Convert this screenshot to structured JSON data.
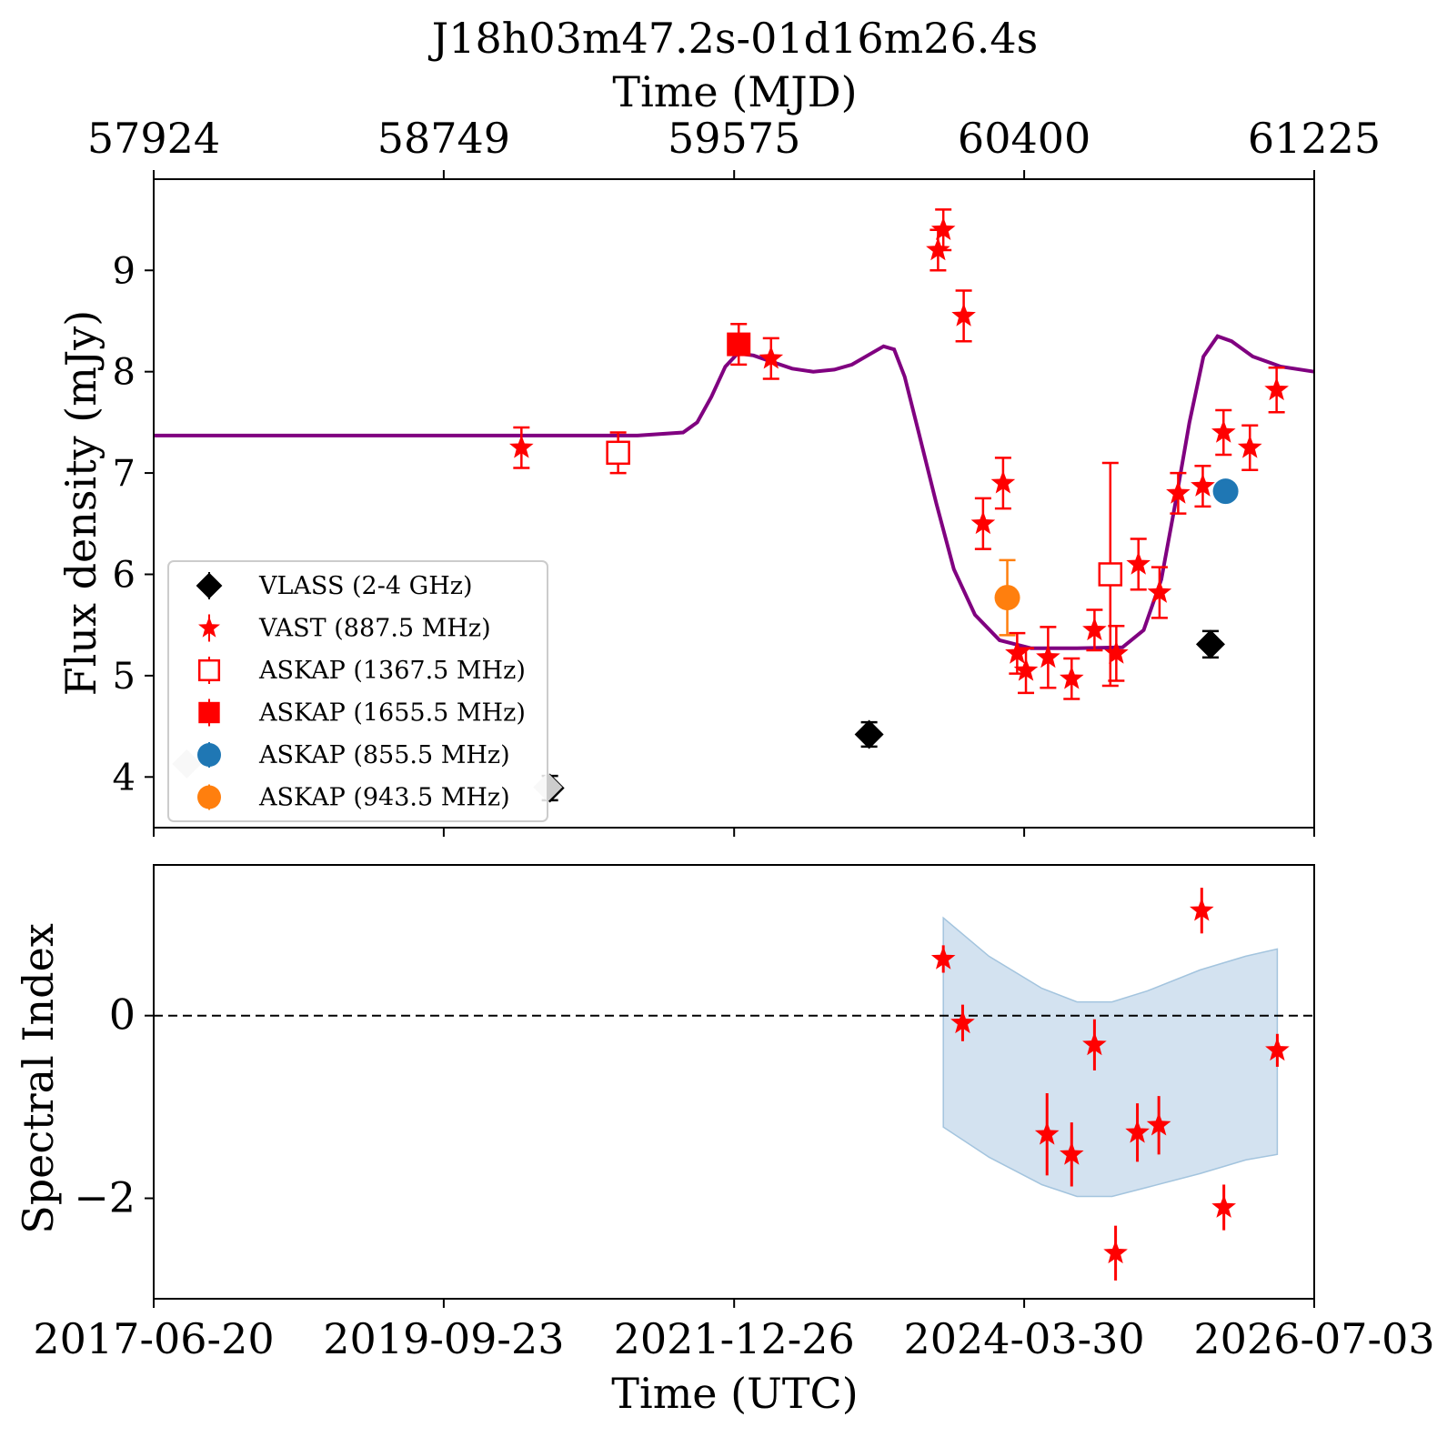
{
  "title": "J18h03m47.2s-01d16m26.4s",
  "top_axis": {
    "label": "Time (MJD)",
    "ticks": [
      57924,
      58749,
      59575,
      60400,
      61225
    ]
  },
  "bottom_axis": {
    "label": "Time (UTC)",
    "ticks": [
      "2017-06-20",
      "2019-09-23",
      "2021-12-26",
      "2024-03-30",
      "2026-07-03"
    ]
  },
  "colors": {
    "vlass": "#000000",
    "vast": "#ff0000",
    "askap_855": "#1f77b4",
    "askap_943": "#ff7f0e",
    "model": "#800080",
    "band": "#aecbe3",
    "grey_point": "#cccccc"
  },
  "chart_data": [
    {
      "type": "scatter",
      "panel": "flux",
      "ylabel": "Flux density (mJy)",
      "xlim": [
        57924,
        61225
      ],
      "ylim": [
        3.5,
        9.9
      ],
      "yticks": [
        4,
        5,
        6,
        7,
        8,
        9
      ],
      "grid": false,
      "legend_position": "lower-left",
      "legend": [
        {
          "label": "VLASS (2-4 GHz)",
          "marker": "diamond",
          "color": "#000000"
        },
        {
          "label": "VAST (887.5 MHz)",
          "marker": "star",
          "color": "#ff0000"
        },
        {
          "label": "ASKAP (1367.5 MHz)",
          "marker": "open-square",
          "color": "#ff0000"
        },
        {
          "label": "ASKAP (1655.5 MHz)",
          "marker": "filled-square",
          "color": "#ff0000"
        },
        {
          "label": "ASKAP (855.5 MHz)",
          "marker": "circle",
          "color": "#1f77b4"
        },
        {
          "label": "ASKAP (943.5 MHz)",
          "marker": "circle",
          "color": "#ff7f0e"
        }
      ],
      "series": [
        {
          "name": "VLASS (2-4 GHz)",
          "marker": "diamond",
          "points": [
            [
              59051,
              3.89,
              0.12
            ],
            [
              59959,
              4.42,
              0.12
            ],
            [
              60930,
              5.31,
              0.13
            ]
          ]
        },
        {
          "name": "VAST (887.5 MHz)",
          "marker": "star",
          "points": [
            [
              58970,
              7.25,
              0.2
            ],
            [
              59680,
              8.13,
              0.2
            ],
            [
              60155,
              9.2,
              0.2
            ],
            [
              60170,
              9.4,
              0.2
            ],
            [
              60228,
              8.55,
              0.25
            ],
            [
              60283,
              6.5,
              0.25
            ],
            [
              60340,
              6.9,
              0.25
            ],
            [
              60380,
              5.22,
              0.2
            ],
            [
              60405,
              5.05,
              0.22
            ],
            [
              60468,
              5.18,
              0.3
            ],
            [
              60535,
              4.97,
              0.2
            ],
            [
              60600,
              5.45,
              0.2
            ],
            [
              60662,
              5.22,
              0.27
            ],
            [
              60725,
              6.1,
              0.25
            ],
            [
              60785,
              5.82,
              0.25
            ],
            [
              60838,
              6.8,
              0.2
            ],
            [
              60908,
              6.87,
              0.2
            ],
            [
              60967,
              7.4,
              0.22
            ],
            [
              61042,
              7.25,
              0.22
            ],
            [
              61118,
              7.82,
              0.22
            ]
          ]
        },
        {
          "name": "ASKAP (1367.5 MHz)",
          "marker": "open-square",
          "points": [
            [
              59245,
              7.2,
              0.2
            ],
            [
              60645,
              6.0,
              1.1
            ]
          ]
        },
        {
          "name": "ASKAP (1655.5 MHz)",
          "marker": "filled-square",
          "points": [
            [
              59588,
              8.27,
              0.2
            ]
          ]
        },
        {
          "name": "ASKAP (855.5 MHz)",
          "marker": "circle",
          "points": [
            [
              60973,
              6.82,
              0
            ]
          ]
        },
        {
          "name": "ASKAP (943.5 MHz)",
          "marker": "circle",
          "points": [
            [
              60352,
              5.77,
              0.37
            ]
          ]
        },
        {
          "marker": "grey-diamond",
          "points": [
            [
              58018,
              4.13,
              0
            ],
            [
              59045,
              3.9,
              0
            ]
          ]
        }
      ],
      "model_curve": [
        [
          57924,
          7.37
        ],
        [
          58700,
          7.37
        ],
        [
          59300,
          7.37
        ],
        [
          59430,
          7.4
        ],
        [
          59470,
          7.5
        ],
        [
          59510,
          7.75
        ],
        [
          59550,
          8.05
        ],
        [
          59585,
          8.18
        ],
        [
          59630,
          8.16
        ],
        [
          59680,
          8.1
        ],
        [
          59740,
          8.03
        ],
        [
          59800,
          8.0
        ],
        [
          59860,
          8.02
        ],
        [
          59910,
          8.07
        ],
        [
          59960,
          8.17
        ],
        [
          60000,
          8.25
        ],
        [
          60030,
          8.22
        ],
        [
          60060,
          7.95
        ],
        [
          60100,
          7.4
        ],
        [
          60150,
          6.7
        ],
        [
          60200,
          6.05
        ],
        [
          60260,
          5.6
        ],
        [
          60330,
          5.35
        ],
        [
          60420,
          5.27
        ],
        [
          60550,
          5.27
        ],
        [
          60680,
          5.28
        ],
        [
          60740,
          5.45
        ],
        [
          60790,
          5.95
        ],
        [
          60830,
          6.7
        ],
        [
          60870,
          7.5
        ],
        [
          60910,
          8.15
        ],
        [
          60950,
          8.35
        ],
        [
          60990,
          8.3
        ],
        [
          61050,
          8.15
        ],
        [
          61130,
          8.05
        ],
        [
          61225,
          8.0
        ]
      ]
    },
    {
      "type": "scatter",
      "panel": "spectral-index",
      "ylabel": "Spectral Index",
      "xlim": [
        57924,
        61225
      ],
      "ylim": [
        -3.1,
        1.65
      ],
      "yticks": [
        0,
        -2
      ],
      "reference_line": 0,
      "points": [
        [
          60170,
          0.62,
          0.15
        ],
        [
          60225,
          -0.08,
          0.2
        ],
        [
          60465,
          -1.3,
          0.45
        ],
        [
          60535,
          -1.52,
          0.35
        ],
        [
          60600,
          -0.32,
          0.28
        ],
        [
          60660,
          -2.6,
          0.3
        ],
        [
          60722,
          -1.28,
          0.32
        ],
        [
          60783,
          -1.2,
          0.32
        ],
        [
          60905,
          1.15,
          0.25
        ],
        [
          60968,
          -2.1,
          0.25
        ],
        [
          61120,
          -0.38,
          0.18
        ]
      ],
      "band_upper": [
        [
          60170,
          1.07
        ],
        [
          60300,
          0.65
        ],
        [
          60450,
          0.3
        ],
        [
          60550,
          0.15
        ],
        [
          60650,
          0.15
        ],
        [
          60750,
          0.27
        ],
        [
          60900,
          0.5
        ],
        [
          61030,
          0.65
        ],
        [
          61120,
          0.73
        ]
      ],
      "band_lower": [
        [
          60170,
          -1.22
        ],
        [
          60300,
          -1.55
        ],
        [
          60450,
          -1.85
        ],
        [
          60550,
          -1.98
        ],
        [
          60650,
          -1.98
        ],
        [
          60750,
          -1.88
        ],
        [
          60900,
          -1.73
        ],
        [
          61030,
          -1.58
        ],
        [
          61120,
          -1.52
        ]
      ]
    }
  ]
}
